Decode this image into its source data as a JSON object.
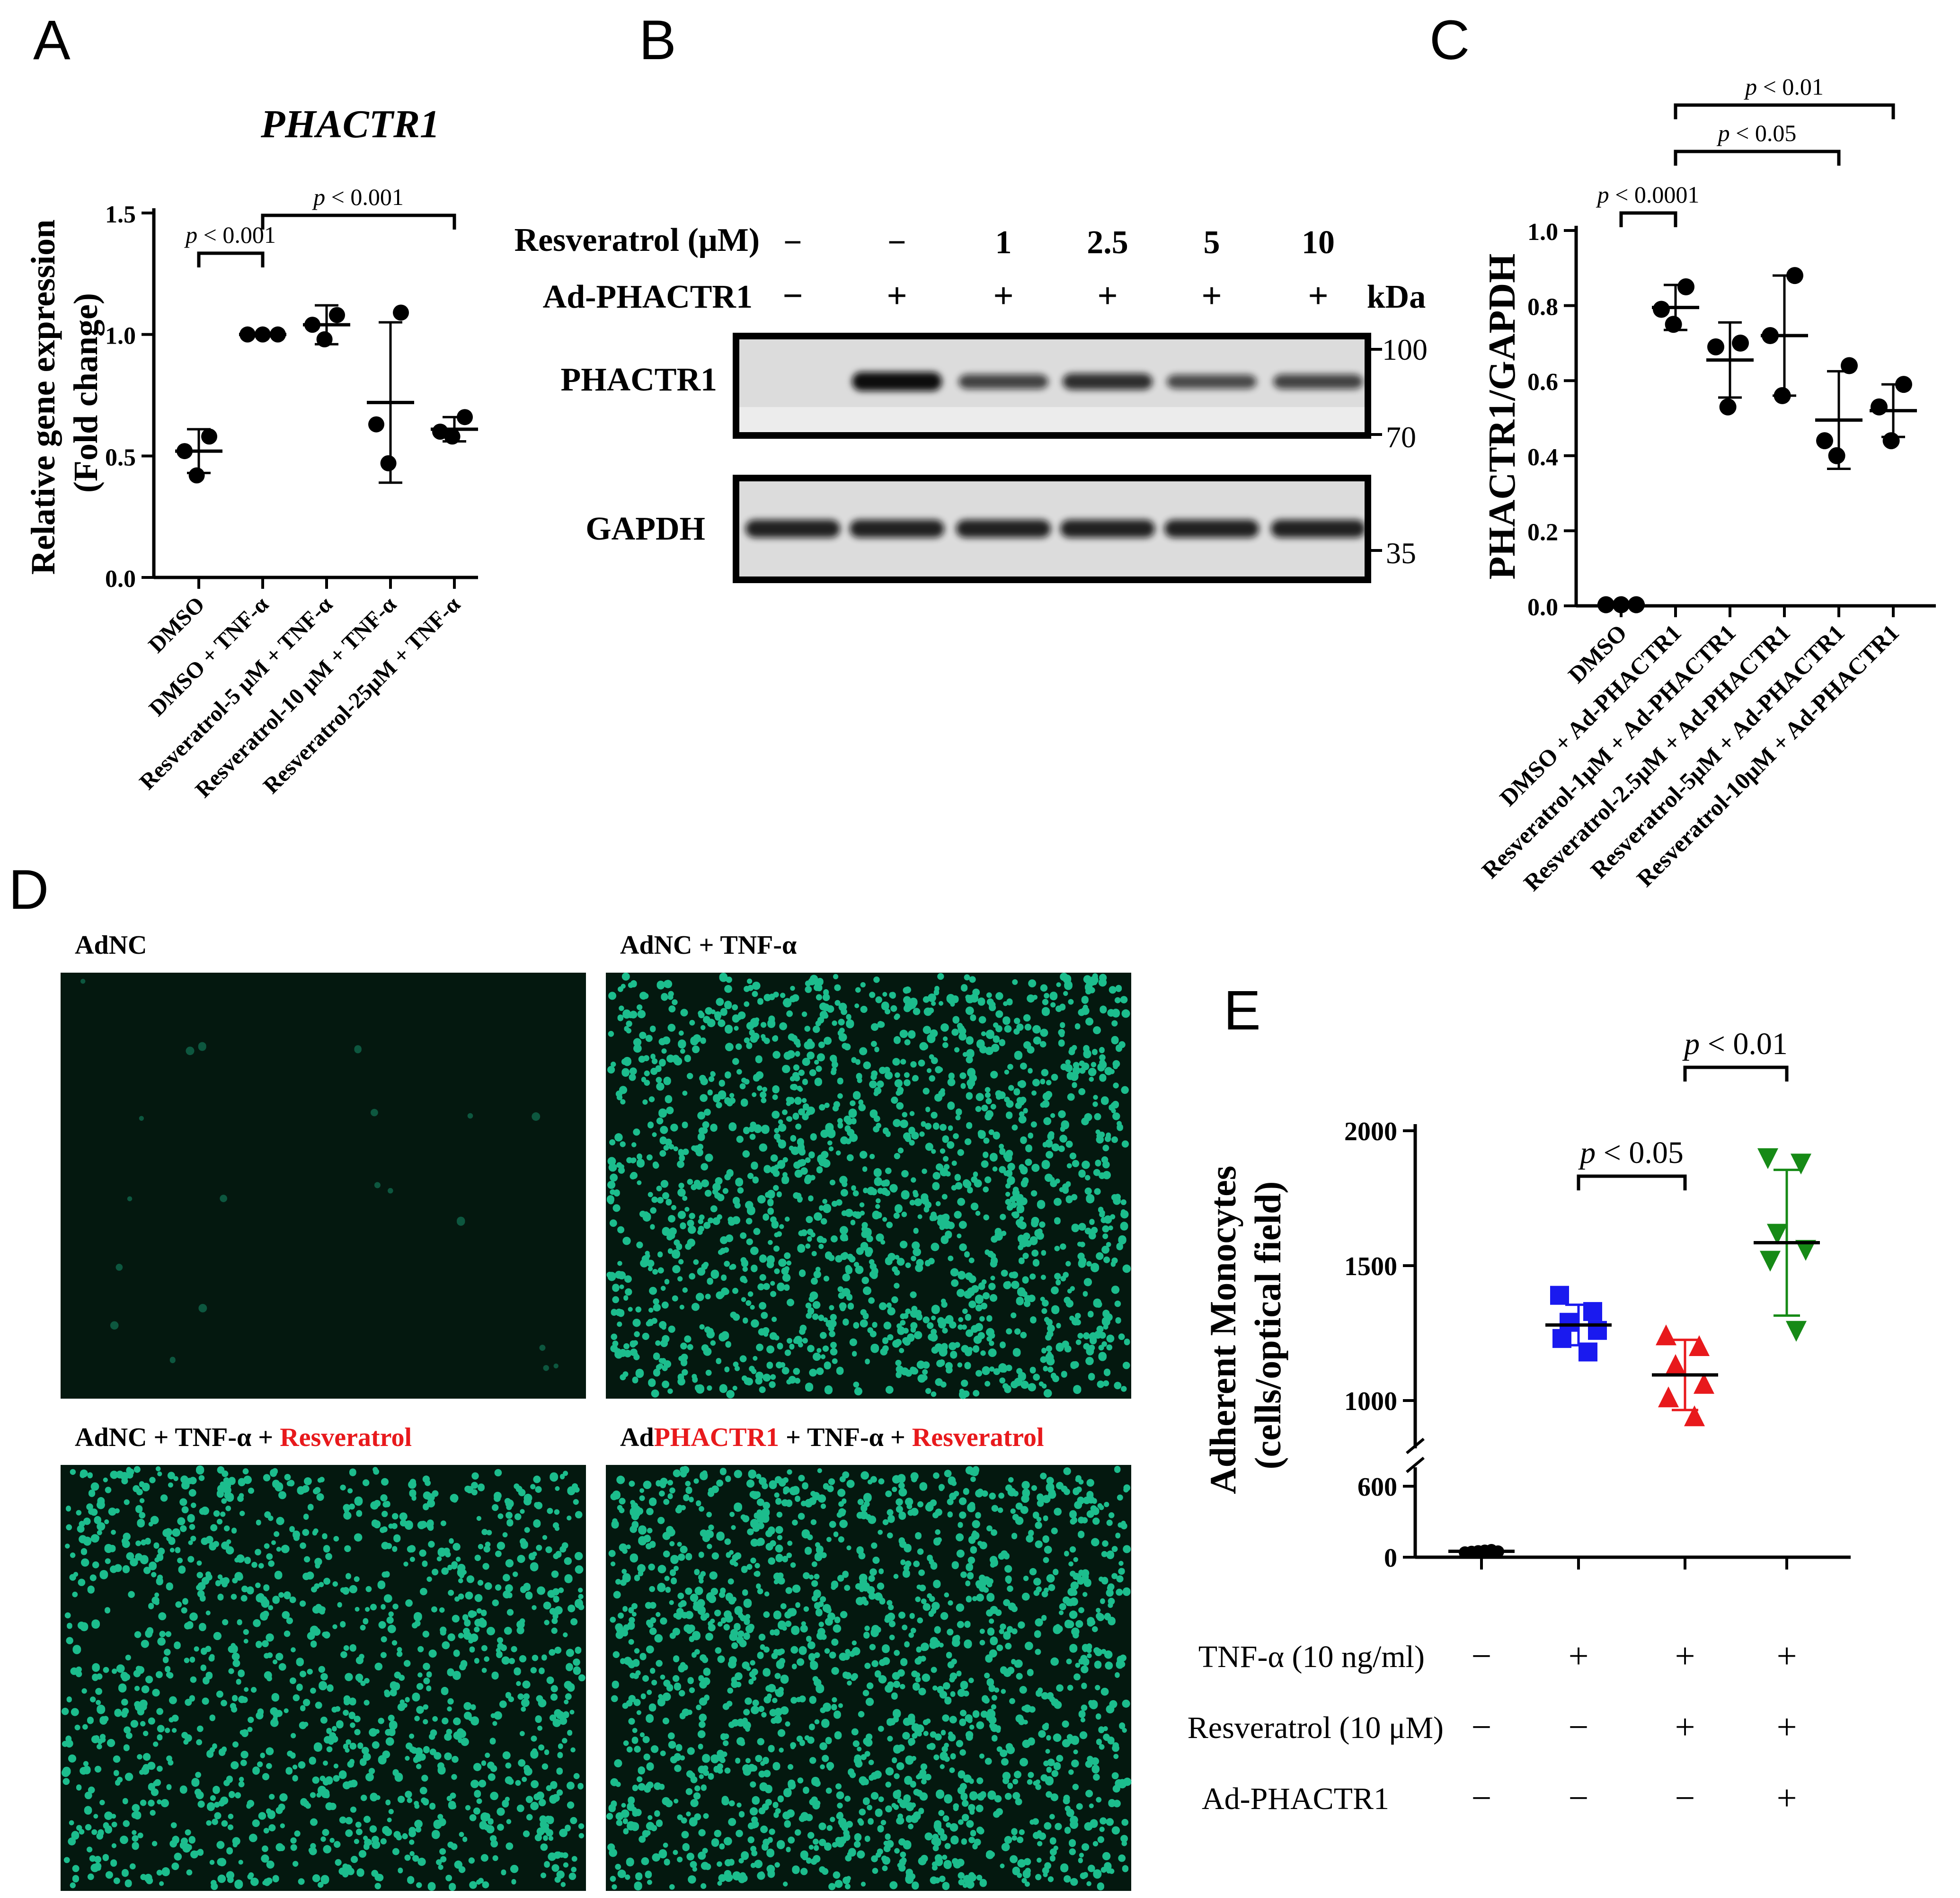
{
  "colors": {
    "axis": "#000000",
    "red": "#e8191c",
    "blue": "#1a1aef",
    "green": "#168a16",
    "fluor": "#1fcf9b",
    "fluor_bg": "#04180f",
    "blot_bg": "#dcdcdc"
  },
  "panels": {
    "A": {
      "letter": "A",
      "chart_data": {
        "type": "scatter",
        "title": "PHACTR1",
        "ylabel_lines": [
          "Relative gene expression",
          "(Fold change)"
        ],
        "xlabel": "",
        "ylim": [
          0,
          1.5
        ],
        "yticks": [
          "0.0",
          "0.5",
          "1.0",
          "1.5"
        ],
        "categories": [
          "DMSO",
          "DMSO + TNF-α",
          "Resveratrol-5 μM + TNF-α",
          "Resveratrol-10 μM + TNF-α",
          "Resveratrol-25μM + TNF-α"
        ],
        "points": [
          [
            0.58,
            0.52,
            0.42
          ],
          [
            1.0,
            1.0,
            1.0
          ],
          [
            1.08,
            1.04,
            0.98
          ],
          [
            1.09,
            0.63,
            0.47
          ],
          [
            0.66,
            0.6,
            0.58
          ]
        ],
        "means": [
          0.52,
          1.0,
          1.04,
          0.72,
          0.61
        ],
        "sd": [
          0.09,
          0.0,
          0.08,
          0.33,
          0.05
        ],
        "annotations": [
          {
            "label": "p < 0.001",
            "from": 0,
            "to": 1
          },
          {
            "label": "p < 0.001",
            "from": 1,
            "to": 4
          }
        ]
      }
    },
    "B": {
      "letter": "B",
      "row_labels": [
        "Resveratrol (μM)",
        "Ad-PHACTR1"
      ],
      "resveratrol": [
        "−",
        "−",
        "1",
        "2.5",
        "5",
        "10"
      ],
      "adphactr1": [
        "−",
        "+",
        "+",
        "+",
        "+",
        "+"
      ],
      "kda_label": "kDa",
      "markers": [
        "100",
        "70",
        "35"
      ],
      "blots": [
        "PHACTR1",
        "GAPDH"
      ],
      "phactr1_intensity": [
        0,
        1.0,
        0.6,
        0.75,
        0.55,
        0.6
      ],
      "gapdh_intensity": [
        1.0,
        1.0,
        1.0,
        1.0,
        1.0,
        1.0
      ]
    },
    "C": {
      "letter": "C",
      "chart_data": {
        "type": "scatter",
        "ylabel": "PHACTR1/GAPDH",
        "ylim": [
          0,
          1.0
        ],
        "yticks": [
          "0.0",
          "0.2",
          "0.4",
          "0.6",
          "0.8",
          "1.0"
        ],
        "categories": [
          "DMSO",
          "DMSO + Ad-PHACTR1",
          "Resveratrol-1μM + Ad-PHACTR1",
          "Resveratrol-2.5μM + Ad-PHACTR1",
          "Resveratrol-5μM + Ad-PHACTR1",
          "Resveratrol-10μM + Ad-PHACTR1"
        ],
        "points": [
          [
            0.003,
            0.003,
            0.003
          ],
          [
            0.85,
            0.79,
            0.75
          ],
          [
            0.7,
            0.69,
            0.53
          ],
          [
            0.88,
            0.72,
            0.56
          ],
          [
            0.64,
            0.44,
            0.4
          ],
          [
            0.59,
            0.53,
            0.44
          ]
        ],
        "means": [
          0.003,
          0.795,
          0.655,
          0.72,
          0.495,
          0.52
        ],
        "sd": [
          0.0,
          0.06,
          0.1,
          0.16,
          0.13,
          0.07
        ],
        "annotations": [
          {
            "label": "p < 0.0001",
            "from": 0,
            "to": 1
          },
          {
            "label": "p < 0.05",
            "from": 1,
            "to": 4
          },
          {
            "label": "p < 0.01",
            "from": 1,
            "to": 5
          }
        ]
      }
    },
    "D": {
      "letter": "D",
      "images": [
        {
          "label_parts": [
            {
              "text": "AdNC",
              "red": false
            }
          ]
        },
        {
          "label_parts": [
            {
              "text": "AdNC + TNF-α",
              "red": false
            }
          ]
        },
        {
          "label_parts": [
            {
              "text": "AdNC + TNF-α + ",
              "red": false
            },
            {
              "text": "Resveratrol",
              "red": true
            }
          ]
        },
        {
          "label_parts": [
            {
              "text": "Ad",
              "red": false
            },
            {
              "text": "PHACTR1",
              "red": true
            },
            {
              "text": " + TNF-α + ",
              "red": false
            },
            {
              "text": "Resveratrol",
              "red": true
            }
          ]
        }
      ],
      "cell_density": [
        0.012,
        1.0,
        0.78,
        1.0
      ]
    },
    "E": {
      "letter": "E",
      "chart_data": {
        "type": "scatter",
        "ylabel_lines": [
          "Adherent Monocytes",
          "(cells/optical field)"
        ],
        "yticks": [
          "0",
          "600",
          "1000",
          "1500",
          "2000"
        ],
        "axis_break": true,
        "groups": [
          {
            "marker": "circle",
            "color": "#000000",
            "points": [
              40,
              45,
              50,
              55,
              60,
              48
            ],
            "mean": 50,
            "sd": 8
          },
          {
            "marker": "square",
            "color": "#1a1aef",
            "points": [
              1390,
              1330,
              1290,
              1260,
              1230,
              1180
            ],
            "mean": 1280,
            "sd": 75
          },
          {
            "marker": "triangle",
            "color": "#e8191c",
            "points": [
              1240,
              1200,
              1130,
              1060,
              1010,
              940
            ],
            "mean": 1095,
            "sd": 130
          },
          {
            "marker": "triangle-down",
            "color": "#168a16",
            "points": [
              1900,
              1880,
              1620,
              1560,
              1520,
              1260
            ],
            "mean": 1585,
            "sd": 270
          }
        ],
        "annotations": [
          {
            "label": "p < 0.05",
            "from": 1,
            "to": 2
          },
          {
            "label": "p < 0.01",
            "from": 2,
            "to": 3
          }
        ],
        "treatment_rows": [
          {
            "label": "TNF-α (10 ng/ml)",
            "signs": [
              "−",
              "+",
              "+",
              "+"
            ]
          },
          {
            "label": "Resveratrol (10 μM)",
            "signs": [
              "−",
              "−",
              "+",
              "+"
            ]
          },
          {
            "label": "Ad-PHACTR1",
            "signs": [
              "−",
              "−",
              "−",
              "+"
            ]
          }
        ]
      }
    }
  }
}
